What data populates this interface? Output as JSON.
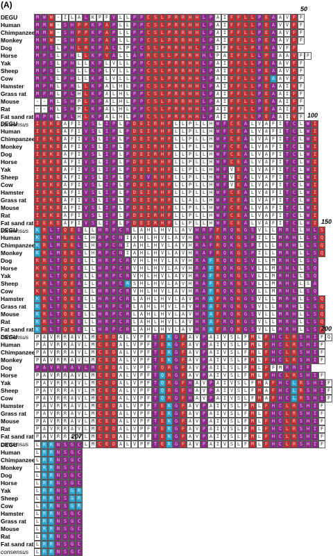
{
  "panel_label": "(A)",
  "species": [
    "DEGU",
    "Human",
    "Chimpanzee",
    "Monkey",
    "Dog",
    "Horse",
    "Yak",
    "Sheep",
    "Cow",
    "Hamster",
    "Grass rat",
    "Mouse",
    "Rat",
    "Fat sand rat",
    "consensus"
  ],
  "colors": {
    "R": "#c42c33",
    "P": "#8e2389",
    "B": "#2aa3cf",
    "W": "#ffffff"
  },
  "blocks": [
    {
      "number": "50",
      "rows": [
        "MWW-ILALKPFVLLPPCSLPRRHHLPAIFFLLPEAAVFF",
        "MMW-SHPPKPAPLLPPCSLPRRHHLPAIFFLLPEAVVFF",
        "MMW-SHPPKPAPLLPPCSLPRRHHLPAIFFLLPEAAVFF",
        "MMW-SHPPKPAPLLPPCSLPRRHHLPAIFFLLPEAAVFF",
        "MPSLPHLRKPALLPPCSLPRRHHLPAIFFLLPEAAVFF",
        "MPSLPHLLKPVALLAPRCSLPRRHHLPAIFFLLPEAAVFF",
        "MPSLPHLLKPLVLLPPCSLPRRHHLPAIFFLLPEAAVFF",
        "MPSLPHLLKPLVLLPPCSLPRRHHLPAIFFLLPEAAVFF",
        "MPSLPHLLKPLVLLPPCSLPRRHHLPAIFFLLPEAAVFF",
        "MPMLPMLLKPALHLPPCSLPRRHHLPAIFFLLPEAAIVF",
        "MPMLPLHLKPALHLPPCSLPRRHHLPAIFFLLPEAAIFF",
        "--MLSHPLKPALHLPPCSLPRRHHLPAIFFLLPEAAIFF",
        "--MLSHPLKPALHLPPCSLPRRHHLPAIFFLLPEAAIFF",
        "MPMLPLHLKPALHLPPCSLPRRHHLPAIFFLLPEAAIVF",
        "MWW.S.HLKPALHLPPCSLPRRHHLPAIFFLLPEAA.VF"
      ],
      "colors": [
        "PPRWWWWPWWWPWWPPRRRRRRRRPPWWRRRRPRPWWRW",
        "PPRWPPRRPPRPWWPPRRRRRRRRPPWWRRRRPRPWWRW",
        "PPRWPPRRPPRPWWPPRRRRRRRRPPWWRRRRPRPWWRW",
        "PPRWPPRRPPRPWWPPRRRRRRRRPPWWRRRRPRPWWRW",
        "PPPWPPRRPPRPWWPPRRRRRRRRPPWWRRRRPRPWWRW",
        "PPPWPPWRPPRPWWPPRRRRRRRRPPWWRRRRPRPWWRW",
        "PPPWPPWWPPWWWWPPRRRRRRRRPPWWRRRRPRPWWRW",
        "PPPWPPWWPPWWWWPPRRRRRRRRPPWWRRRRPRPWWRW",
        "PPPWPPWWPPWWWWPPRRRRRRRRPPWWRRRRPRBWWRW",
        "PPPWPPWRPPWWWWPPRRRRRRRRPPWWRRRRPRPWWRW",
        "PPPWPPWRPPWWWWPPRRRRRRRRPPWWRRRRPRPWWRW",
        "WWPWPPWRPPWWWWPPRRRRRRRRPPWWRRRRPRPWWRW",
        "WWPWPPWRPPWWWWPPRRRRRRRRPPWWRRRRPRPWWRW",
        "PPPWPPWRPPWWWWPPRRRRRRRRPPWWRRRRPRPWWRW",
        "PPPWPPWRPPWWWWPPRRRRRRRRPPWWRRRRPRPWWRW"
      ]
    },
    {
      "number": "100",
      "rows": [
        "IEKEAFIVSLIPLPDEIRHFLLPLLHWFCEALVAFITCLWI",
        "IEKEAFIVSLIPLPDEIRHFLLPLLHWFCEALVAFITCLWI",
        "IEKEAFIVSLIPLPDEIRHFLLPLLHWFCEALVAFITCLWI",
        "IEKEAFIVSLIPLPDEIRHFLLPLLHWFCEALVAFITCLWI",
        "IEKEAFIVSLIPLPDEIRHFLLPLLHWFCEALVAFITCLWI",
        "IEKEAFIVSLIPLPDEIRHFLLPLLHWFCEALVAFITCLWI",
        "IEKEAFIVSLIPLPDEIRHFLLPLLHWFVEALVAFITCLWI",
        "IEKEAFIVSLIPLPDEVRHFLLPLLHWFVEALVAFITCLWI",
        "IEKEAFIVSLIPLPDEIRHFLLPLLHWFVEALVAFITCLWI",
        "IEKEAFIVSLIPLPDEIRHFLLPLLHWFCEALVAFITCLWI",
        "IEKEAFIVSLIPLPDEIRHFLLALLHWFCEALVAFITCLWI",
        "IEKEAFIVSLIPLPDEIRHFLLPLLHWFCEALVAFITCLWI",
        "IEKEAFIVSLIPLPDEIRHFLLPLLHWFCEALVAFITCLWI",
        "IEKEAFIVSLIPLPDEIRHFLLPLLHWFCEALVAFITCLWI",
        "IEKEAFIVSLIPLPDEIRHFLLPLLHWFCEALVAFITCLWI"
      ],
      "colors": [
        "RRRRWWWPPWPPWPRRRRRRWWWWWWPPRRPWWWWWPPWPR",
        "RRRRWWWPPWPPWPRRRRRRWWWWWWPPRRPWWWWWPPWPR",
        "RRRRWWWPPWPPWPRRRRRRWWWWWWPPRRPWWWWWPPWPR",
        "RRRRWWWPPWPPWPRRRRRRWWWWWWPPRRPWWWWWPPWPR",
        "RRRRWWWPPWPPWPRRRRRRWWWWWWPPRRPWWWWWPPWPR",
        "RRRRWWWPPWPPWPRRRRRRWWWWWWPPRRPWWWWWPPWPR",
        "RRRRWWWPPWPPWPRRRRRRWWWWWWPPWRPWWWWWPPWPR",
        "RRRRWWWPPWPPWPRRPRRRWWWWWWPPWRPWWWWWPPWPR",
        "RRRRWWWPPWPPWPRRRRRRWWWWWWPPWRPWWWWWPPWPR",
        "RRRRWWWPPWPPWPRRRRRRWWWWWWPPRRPWWWWWPPWPR",
        "RRRRWWWPPWPPWPRRRRRRWWWWWWPPRRPWWWWWPPWPR",
        "RRRRWWWPPWPPWPRRRRRRWWWWWWPPRRPWWWWWPPWPR",
        "RRRRWWWPPWPPWPRRRRRRWWWWWWPPRRPWWWWWPPWPR",
        "RRRRWWWPPWPPWPRRRRRRWWWWWWPPRRPWWWWWPPWPR",
        "RRRRWWWPPWPPWPRRRRRRWWWWWWPPRRPWWBWWPPWPR"
      ]
    },
    {
      "number": "150",
      "rows": [
        "KRLTQEELLHRPCRLAHLHVLAVHRPFRQKGSVLLMRLLHLS",
        "KRLMEELLHRPCNIAHLHVLAVHRAFRQKGSPILLMRHLLSQ",
        "KRLMEELLHRPCNIAHLHVLAVHRAFRQKGSPILLMRHLLSQ",
        "KRLMEELLHRPCNIAHLHVLAVHRAFRQKGSPILLMRHLLSQ",
        "KRLTQEELLHRPCRVHLHVLAVHRAFRQKGSVLLMRHLLSQ",
        "KRLTQEELLHRPCRVHLHVLAVHRAFRQKGSVLLMRHLLSQ",
        "KRLTQEELLHRPCRVHLHVLAVHRAFRQKGSVLLMRHLLSQ",
        "KRLTQEALLHRPCRSHLHVLAVHRAFRQKGSVLLMRHVLSA",
        "KRLTQEELLHRPCRVHLHVLAVHRAFRQKGSVLLMRHLLSQ",
        "KRLTQEELLHRPCRLAHLHVLAVHRAFRQKGSVLLMRHLLSQ",
        "KRLTQEELLHRPCRLAHLHVLAVHRAFRQKGSVLLMRHLLSQ",
        "KRLTQEELLHRPCRLAHLHVLAVHRAFRQKGSVLLMRHLLSQ",
        "KRLTQEELLHRPCRLAHLHVLAVHRAFRQKGSVLLMRHLLSQ",
        "KRLTQEELLHRPCRLAHLHVLAVHRAFRQKGSVLLMRHLLSQ",
        "KRLTQEELLHRPCRLAHLHVLAVHRAFRQKGSPVLLMRHLLSQ"
      ],
      "colors": [
        "BRPPRRPWWPPPPPWWWWWWWWWPPPRPPRPPWWWPPPWPPR",
        "BRPPRRPWWPPPPWWWWWWWWWWPPPRPPRPPWWWPPPWPPR",
        "BRPPRRPWWPPPPWWWWWWWWWWPPPRPPRPPWWWPPPWPPR",
        "BRPPRRPWWPPPPWWWWWWWWWWPPPRPPRPPWWWPPPWPPR",
        "RRPPRRPWWPPPPPWWWWWWWWWPPBRPPRPPWWWPPPWPPR",
        "RRPPRRPWWPPPPPWWWWWWWWWPPBRPPRPPWWWPPPWPPR",
        "RRPPRRPWWPPPPPWWWWWWWWWPPBRPPRPPWWWPPPWPPR",
        "RRPPRRPWWPPPPBWWWWWWWWWPPBRPPRPPWWWPPPWWPW",
        "RRPPRRPWWPPPPPWWWWWWWWWPPBRPPRPPWWWPPPWPPR",
        "BRPPRRPWWPPPPPWWWWWWWWWPPBRPPRPPWWWPPPWPPR",
        "BRPPRRPWWPPPPPWWWWWWWWWPPBRPPRPPWWWPPPWPPR",
        "BRPPRRPWWPPPPPWWWWWWWWWPPBRPPRPPWWWPPPWPPR",
        "BRPPRRPWWPPPPPWWWWWWWWWPPBRPPRPPWWWPPPWPPR",
        "BRPPRRPWWPPPPPWWWWWWWWWPPBRPPRPPWWWPPPWPPR",
        "BRPPRRPWWPPPPPWWWWWWWWWPPBRPPRPPWWWPPPWPPR"
      ]
    },
    {
      "number": "200",
      "rows": [
        "PAVRRAVLMCEDALVPFTEKGFAVPAIVSLFMLFHCLRSHIF",
        "PAVRRAVLMCEDALVPFTEKGFAVPAIVSLFMLFHCLRSHIF",
        "PAVRRAVLMCEDALVPFTEKGFAVPAIVSLFMLFHCLRSHIF",
        "PAVRRAVLMCEDALVPFTEKGFAVPAIVSLFMLFHCLRSHIF",
        "PAVRRAVLMCEDALVPFTQRGFAVPAILSLFMLFFMRMIF",
        "PAVRRAVLMCEDALVPFTQRGFAVPAIVSLFMLFHCLRSHIF",
        "PAVRRAVLMCEDALVPFTQRGFHAVPAIVSLFMAFHCLRSHIF",
        "PAVRRAVLMCEDALVPFTQRGFHAVPAIVSLFMAFHCLRSHIF",
        "PAVRRAVLMCEDALVPFTQRGFHAVPAIVSLFMAFHCLRSHIF",
        "PAVRRAVLMCEDALVPFTEKGFAVPAIVSLFMLFHCLRSHIF",
        "PAVRRAVLMCEDALVPFTEKGFAVPAIVSLFMLFHCLRSHIF",
        "PAVRRAVLMCEDALVPFTEKGFAVPAIVSLFMLFHCLRSHIF",
        "PAVRRAVLMCEDALVPFTEKGFAVPAIVSLFMLFHCLRSHIF",
        "PAVRRAVLMCEDALVPFTEKGFAVPAIVSLFMLFHCLRSHIF",
        "PAVRRAVLMCEDALVPFTEKGFAVPAIVSLFMLFHCLRSHIF"
      ],
      "colors": [
        "WWWWWWWWWRRRWWWWWPRBPRWWPWWWWWWRWRPPRRPPPW",
        "WWWWWWWWWRRRWWWWWPRBPRWWPWWWWWWRWRPPRRPPPW",
        "WWWWWWWWWRRRWWWWWPRBPRWWPWWWWWWRWRPPRRPPPW",
        "WWWWWWWWWRRRWWWWWPRBPRWWPWWWWWWRWRPPRRPPPW",
        "PPPPPPPPPRRRWWWWWPRRPRWWPWWWWWWRWRWWPPPP",
        "WWWWWWWWWRRRWWWWWPBRPRWWPWWWWWWRWRPPRRPPPW",
        "WWWWWWWWWRRRWWWWWPBRPRPWWPWWWWWWRWRPPBRPPPW",
        "WWWWWWWWWRRRWWWWWPBRPRPWWPWWWWWWRWRPPBRPPPW",
        "WWWWWWWWWRRRWWWWWPBRPRPWWPWWWWWWRWRPPBRPPPW",
        "WWWWWWWWWRRRWWWWWPRBPRWWPWWWWWWRWRPPRRPPPW",
        "WWWWWWWWWRRRWWWWWPRBPRWWPWWWWWWRWRPPRRPPPW",
        "WWWWWWWWWRRRWWWWWPRBPRWWPWWWWWWRWRPPRRPPPW",
        "WWWWWWWWWRRRWWWWWPRBPRWWPWWWWWWRWRPPRRPPPW",
        "WWWWWWWWWRRRWWWWWPRBPRWWPWWWWWWRWRPPRRPPPW",
        "WWWWWWWWWRRRWWWWWPRBPRWWPWWWWWWRWRPPRRPPPW"
      ]
    },
    {
      "number": "207",
      "rows": [
        "LRRNSGC",
        "LRRNSGC",
        "LRRNSGC",
        "LRRNSGC",
        "LRRNSGC",
        "LRRNSGC",
        "LRRNSGR",
        "LRRNSGR",
        "LRRNSGR",
        "LRRNSGC",
        "LRRNSGC",
        "LRRNSGC",
        "LRRNSGC",
        "LRRNSGC",
        "LRRNSGC"
      ],
      "colors": [
        "WBBPPPP",
        "WBBPPPP",
        "WBBPPPP",
        "WBBPPPP",
        "WBBPPPP",
        "WBBPPPP",
        "WBBPPBB",
        "WBBPPBB",
        "WBBPPBB",
        "WBBPPPP",
        "WBBPPPP",
        "WBBPPPP",
        "WBBPPPP",
        "WBBPPPP",
        "WBBPPPP"
      ]
    }
  ]
}
